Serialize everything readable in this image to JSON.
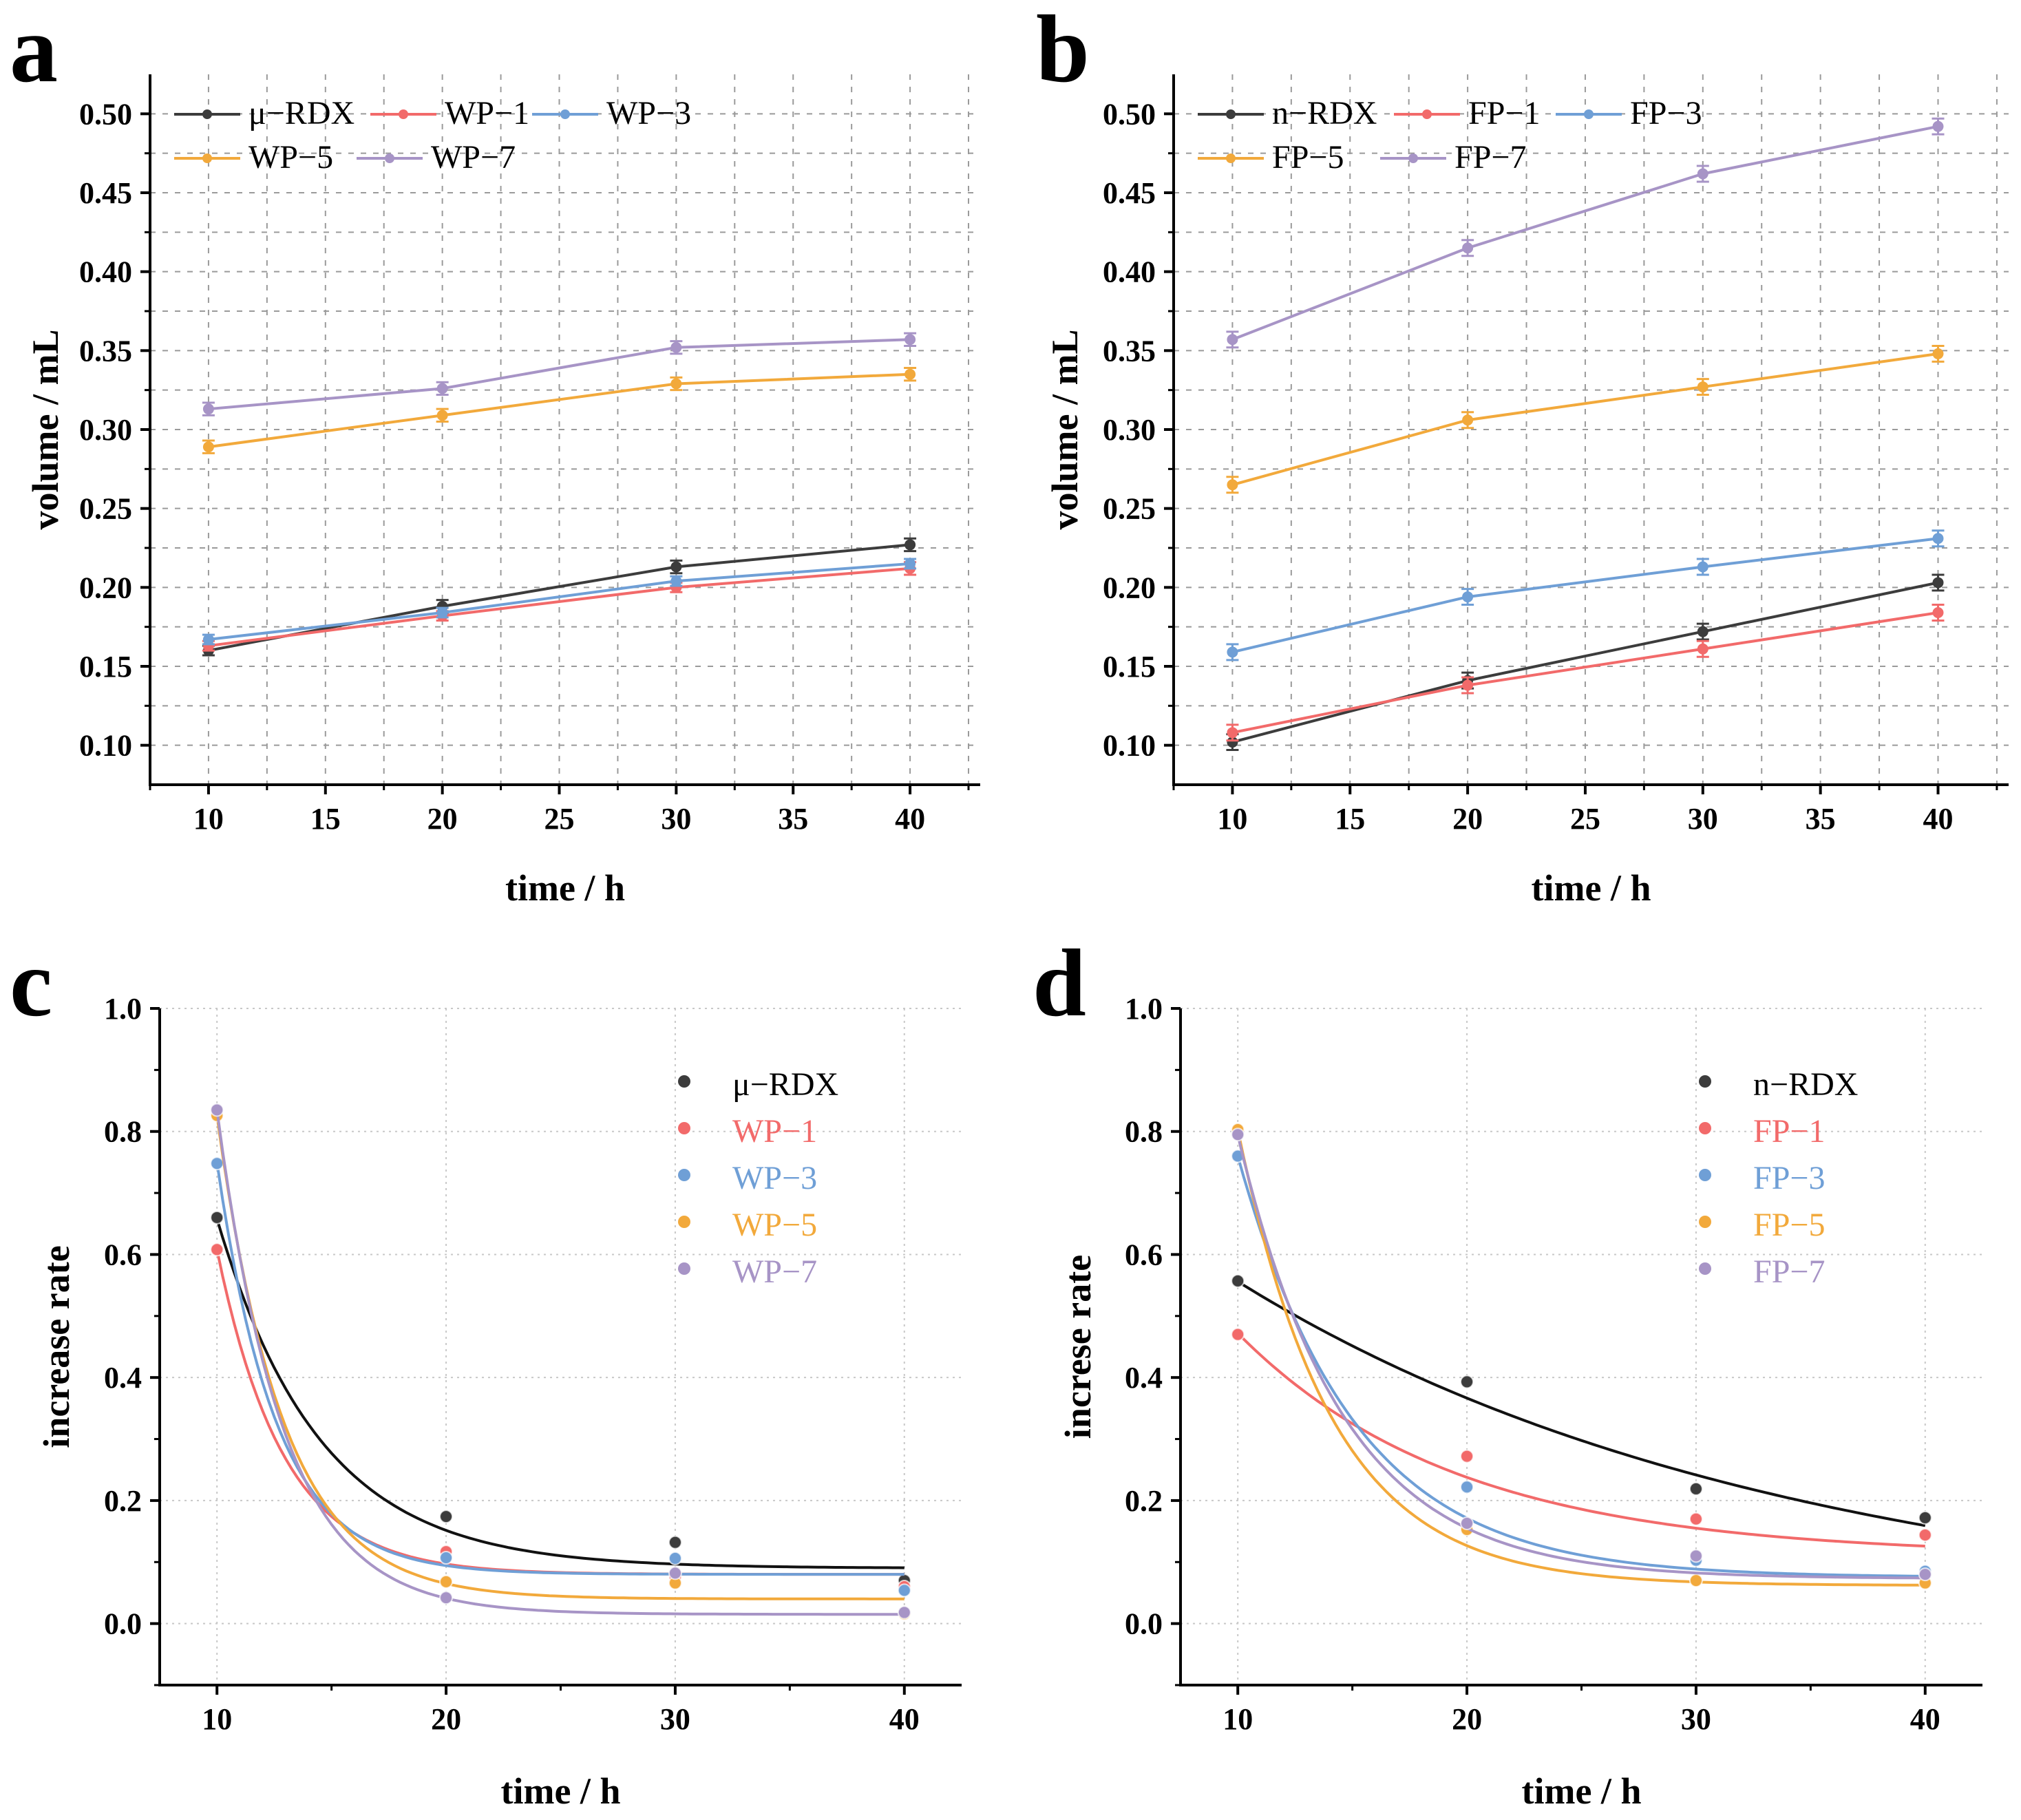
{
  "colors": {
    "black": "#3c3c3c",
    "fit_black": "#111111",
    "red": "#f26a6a",
    "blue": "#6f9fd6",
    "orange": "#f2a93b",
    "purple": "#a794c6",
    "grid": "#9a9a9a"
  },
  "chart_data": [
    {
      "panel": "a",
      "type": "line",
      "title": "",
      "xlabel": "time / h",
      "ylabel": "volume  / mL",
      "xlim": [
        7.5,
        43
      ],
      "ylim": [
        0.075,
        0.525
      ],
      "xticks": [
        "10",
        "15",
        "20",
        "25",
        "30",
        "35",
        "40"
      ],
      "yticks": [
        "0.10",
        "0.15",
        "0.20",
        "0.25",
        "0.30",
        "0.35",
        "0.40",
        "0.45",
        "0.50"
      ],
      "x": [
        10,
        20,
        30,
        40
      ],
      "legend_position": "top-left",
      "series": [
        {
          "name": "μ−RDX",
          "color_key": "black",
          "values": [
            0.16,
            0.188,
            0.213,
            0.227
          ],
          "error": [
            0.003,
            0.004,
            0.004,
            0.004
          ]
        },
        {
          "name": "WP−1",
          "color_key": "red",
          "values": [
            0.163,
            0.182,
            0.2,
            0.212
          ],
          "error": [
            0.003,
            0.003,
            0.003,
            0.004
          ]
        },
        {
          "name": "WP−3",
          "color_key": "blue",
          "values": [
            0.167,
            0.184,
            0.204,
            0.215
          ],
          "error": [
            0.003,
            0.003,
            0.003,
            0.003
          ]
        },
        {
          "name": "WP−5",
          "color_key": "orange",
          "values": [
            0.289,
            0.309,
            0.329,
            0.335
          ],
          "error": [
            0.004,
            0.004,
            0.004,
            0.004
          ]
        },
        {
          "name": "WP−7",
          "color_key": "purple",
          "values": [
            0.313,
            0.326,
            0.352,
            0.357
          ],
          "error": [
            0.004,
            0.004,
            0.004,
            0.004
          ]
        }
      ]
    },
    {
      "panel": "b",
      "type": "line",
      "title": "",
      "xlabel": "time / h",
      "ylabel": "volume  / mL",
      "xlim": [
        7.5,
        43
      ],
      "ylim": [
        0.075,
        0.525
      ],
      "xticks": [
        "10",
        "15",
        "20",
        "25",
        "30",
        "35",
        "40"
      ],
      "yticks": [
        "0.10",
        "0.15",
        "0.20",
        "0.25",
        "0.30",
        "0.35",
        "0.40",
        "0.45",
        "0.50"
      ],
      "x": [
        10,
        20,
        30,
        40
      ],
      "legend_position": "top-left",
      "series": [
        {
          "name": "n−RDX",
          "color_key": "black",
          "values": [
            0.102,
            0.141,
            0.172,
            0.203
          ],
          "error": [
            0.005,
            0.005,
            0.005,
            0.005
          ]
        },
        {
          "name": "FP−1",
          "color_key": "red",
          "values": [
            0.108,
            0.138,
            0.161,
            0.184
          ],
          "error": [
            0.005,
            0.005,
            0.005,
            0.005
          ]
        },
        {
          "name": "FP−3",
          "color_key": "blue",
          "values": [
            0.159,
            0.194,
            0.213,
            0.231
          ],
          "error": [
            0.005,
            0.005,
            0.005,
            0.005
          ]
        },
        {
          "name": "FP−5",
          "color_key": "orange",
          "values": [
            0.265,
            0.306,
            0.327,
            0.348
          ],
          "error": [
            0.005,
            0.005,
            0.005,
            0.005
          ]
        },
        {
          "name": "FP−7",
          "color_key": "purple",
          "values": [
            0.357,
            0.415,
            0.462,
            0.492
          ],
          "error": [
            0.005,
            0.005,
            0.005,
            0.005
          ]
        }
      ]
    },
    {
      "panel": "c",
      "type": "scatter",
      "title": "",
      "xlabel": "time / h",
      "ylabel": "increase rate",
      "xlim": [
        7.5,
        42.5
      ],
      "ylim": [
        -0.1,
        1.0
      ],
      "xticks": [
        "10",
        "20",
        "30",
        "40"
      ],
      "yticks": [
        "0.0",
        "0.2",
        "0.4",
        "0.6",
        "0.8",
        "1.0"
      ],
      "x": [
        10,
        20,
        30,
        40
      ],
      "fit": "exponential decay",
      "legend_position": "top-right",
      "series": [
        {
          "name": "μ−RDX",
          "color_key": "black",
          "fit_color_key": "fit_black",
          "values": [
            0.66,
            0.174,
            0.132,
            0.07
          ],
          "fit": {
            "y0": 0.09,
            "A": 0.568,
            "t": 4.5
          }
        },
        {
          "name": "WP−1",
          "color_key": "red",
          "values": [
            0.608,
            0.117,
            0.076,
            0.06
          ],
          "fit": {
            "y0": 0.08,
            "A": 0.528,
            "t": 2.9
          }
        },
        {
          "name": "WP−3",
          "color_key": "blue",
          "values": [
            0.748,
            0.107,
            0.106,
            0.054
          ],
          "fit": {
            "y0": 0.08,
            "A": 0.67,
            "t": 2.6
          }
        },
        {
          "name": "WP−5",
          "color_key": "orange",
          "values": [
            0.826,
            0.068,
            0.066,
            0.016
          ],
          "fit": {
            "y0": 0.04,
            "A": 0.786,
            "t": 2.9
          }
        },
        {
          "name": "WP−7",
          "color_key": "purple",
          "values": [
            0.835,
            0.042,
            0.082,
            0.018
          ],
          "fit": {
            "y0": 0.015,
            "A": 0.82,
            "t": 2.9
          }
        }
      ]
    },
    {
      "panel": "d",
      "type": "scatter",
      "title": "",
      "xlabel": "time / h",
      "ylabel": "increse rate",
      "xlim": [
        7.5,
        42.5
      ],
      "ylim": [
        -0.1,
        1.0
      ],
      "xticks": [
        "10",
        "20",
        "30",
        "40"
      ],
      "yticks": [
        "0.0",
        "0.2",
        "0.4",
        "0.6",
        "0.8",
        "1.0"
      ],
      "x": [
        10,
        20,
        30,
        40
      ],
      "fit": "exponential decay",
      "legend_position": "top-right",
      "series": [
        {
          "name": "n−RDX",
          "color_key": "black",
          "fit_color_key": "fit_black",
          "values": [
            0.557,
            0.393,
            0.219,
            0.172
          ],
          "fit": {
            "y0": 0.0,
            "A": 0.556,
            "t": 24.0
          }
        },
        {
          "name": "FP−1",
          "color_key": "red",
          "values": [
            0.47,
            0.272,
            0.17,
            0.144
          ],
          "fit": {
            "y0": 0.11,
            "A": 0.362,
            "t": 9.6
          }
        },
        {
          "name": "FP−3",
          "color_key": "blue",
          "values": [
            0.76,
            0.222,
            0.103,
            0.085
          ],
          "fit": {
            "y0": 0.075,
            "A": 0.685,
            "t": 5.1
          }
        },
        {
          "name": "FP−5",
          "color_key": "orange",
          "values": [
            0.803,
            0.153,
            0.07,
            0.066
          ],
          "fit": {
            "y0": 0.062,
            "A": 0.741,
            "t": 4.1
          }
        },
        {
          "name": "FP−7",
          "color_key": "purple",
          "values": [
            0.795,
            0.163,
            0.11,
            0.08
          ],
          "fit": {
            "y0": 0.073,
            "A": 0.721,
            "t": 4.6
          }
        }
      ]
    }
  ]
}
